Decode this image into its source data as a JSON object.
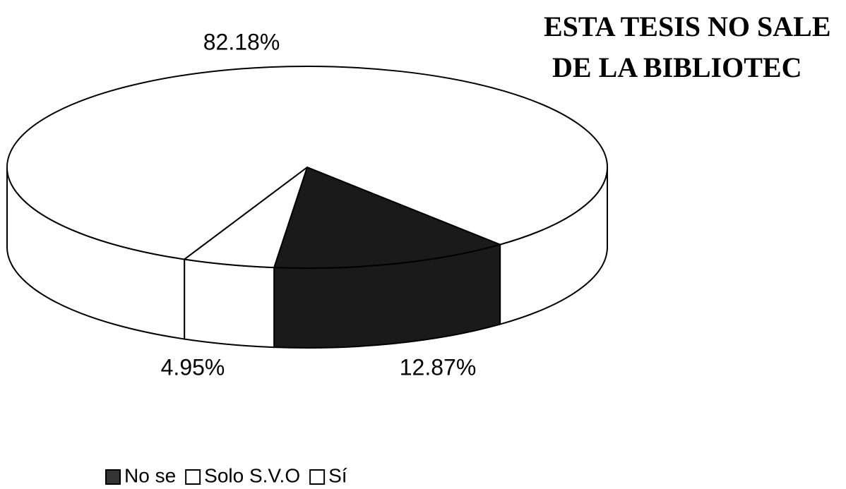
{
  "chart_data": {
    "type": "pie3d",
    "categories": [
      "No se",
      "Solo S.V.O",
      "Sí"
    ],
    "values": [
      12.87,
      4.95,
      82.18
    ],
    "value_labels": [
      "12.87%",
      "4.95%",
      "82.18%"
    ],
    "colors": [
      "#1a1a1a",
      "#ffffff",
      "#ffffff"
    ],
    "annotations": [
      "ESTA TESIS NO SALE",
      "DE LA BIBLIOTEC"
    ],
    "legend": "bottom"
  }
}
